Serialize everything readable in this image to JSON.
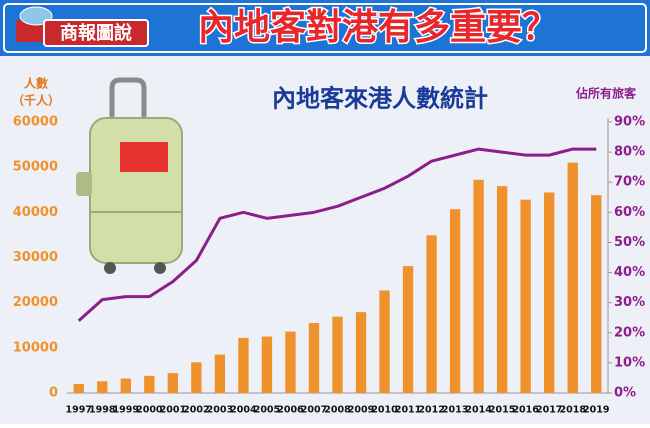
{
  "header": {
    "logo": "商報圖說",
    "title": "內地客對港有多重要？"
  },
  "chart_data": {
    "type": "bar",
    "title": "內地客來港人數統計",
    "y_label": [
      "人數",
      "（千人）"
    ],
    "y2_label": "佔所有旅客",
    "categories": [
      "1997",
      "1998",
      "1999",
      "2000",
      "2001",
      "2002",
      "2003",
      "2004",
      "2005",
      "2006",
      "2007",
      "2008",
      "2009",
      "2010",
      "2011",
      "2012",
      "2013",
      "2014",
      "2015",
      "2016",
      "2017",
      "2018",
      "2019"
    ],
    "series": [
      {
        "type": "bar",
        "color": "#f0922b",
        "values": [
          2000,
          2600,
          3200,
          3800,
          4400,
          6800,
          8500,
          12200,
          12500,
          13600,
          15500,
          16900,
          17900,
          22700,
          28100,
          34900,
          40700,
          47200,
          45800,
          42800,
          44400,
          51000,
          43800
        ]
      },
      {
        "type": "line",
        "axis": "y2",
        "color": "#8e1d8c",
        "values": [
          24,
          31,
          32,
          32,
          37,
          44,
          58,
          60,
          58,
          59,
          60,
          62,
          65,
          68,
          72,
          77,
          79,
          81,
          80,
          79,
          79,
          81,
          81
        ]
      }
    ],
    "ylim": [
      0,
      60000
    ],
    "yticks": [
      0,
      10000,
      20000,
      30000,
      40000,
      50000,
      60000
    ],
    "y2lim": [
      0,
      90
    ],
    "y2ticks": [
      {
        "value": 0,
        "label": "0%"
      },
      {
        "value": 10,
        "label": "10%"
      },
      {
        "value": 20,
        "label": "20%"
      },
      {
        "value": 30,
        "label": "30%"
      },
      {
        "value": 40,
        "label": "40%"
      },
      {
        "value": 50,
        "label": "50%"
      },
      {
        "value": 60,
        "label": "60%"
      },
      {
        "value": 70,
        "label": "70%"
      },
      {
        "value": 80,
        "label": "80%"
      },
      {
        "value": 90,
        "label": "90%"
      }
    ],
    "grid": false
  }
}
